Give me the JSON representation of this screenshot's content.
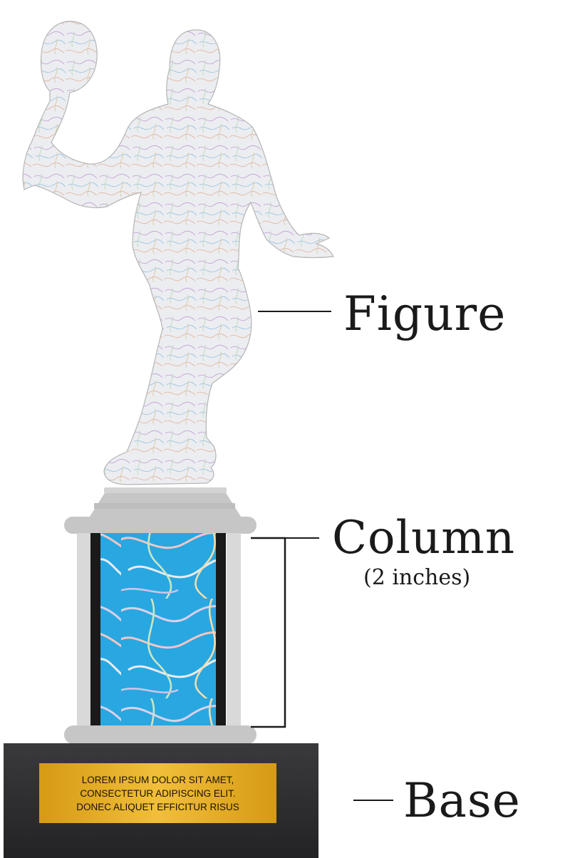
{
  "labels": {
    "figure": "Figure",
    "column": "Column",
    "column_size": "(2 inches)",
    "base": "Base"
  },
  "plate": {
    "lines": [
      "LOREM IPSUM DOLOR SIT AMET,",
      "CONSECTETUR ADIPISCING ELIT.",
      "DONEC ALIQUET EFFICITUR RISUS"
    ]
  },
  "colors": {
    "figure_fill": "#ecedf0",
    "column_blue": "#29a7e0",
    "silver": "#c6c6c6",
    "silver_light": "#d9d9d9",
    "base_black": "#2b2b2d",
    "plate_gold": "#e3a81f",
    "line_dark": "#1a1a1a"
  }
}
